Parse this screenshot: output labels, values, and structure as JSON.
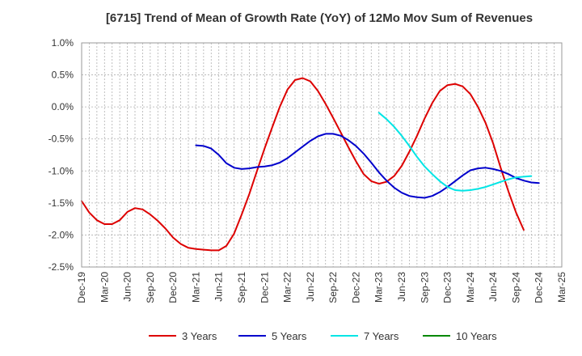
{
  "chart_data": {
    "type": "line",
    "title": "[6715]  Trend of Mean of Growth Rate (YoY) of 12Mo Mov Sum of Revenues",
    "xlabel": "",
    "ylabel": "",
    "ylim": [
      -2.5,
      1.0
    ],
    "grid": true,
    "legend_position": "bottom",
    "y_ticks": [
      1.0,
      0.5,
      0.0,
      -0.5,
      -1.0,
      -1.5,
      -2.0,
      -2.5
    ],
    "y_tick_labels": [
      "1.0%",
      "0.5%",
      "0.0%",
      "-0.5%",
      "-1.0%",
      "-1.5%",
      "-2.0%",
      "-2.5%"
    ],
    "x_tick_labels": [
      "Dec-19",
      "Mar-20",
      "Jun-20",
      "Sep-20",
      "Dec-20",
      "Mar-21",
      "Jun-21",
      "Sep-21",
      "Dec-21",
      "Mar-22",
      "Jun-22",
      "Sep-22",
      "Dec-22",
      "Mar-23",
      "Jun-23",
      "Sep-23",
      "Dec-23",
      "Mar-24",
      "Jun-24",
      "Sep-24",
      "Dec-24",
      "Mar-25"
    ],
    "x_range_months": [
      0,
      63
    ],
    "series": [
      {
        "name": "3 Years",
        "color": "#dd0000",
        "start_month": 0,
        "values": [
          -1.47,
          -1.65,
          -1.77,
          -1.83,
          -1.83,
          -1.77,
          -1.64,
          -1.58,
          -1.6,
          -1.68,
          -1.78,
          -1.9,
          -2.04,
          -2.14,
          -2.2,
          -2.22,
          -2.23,
          -2.24,
          -2.24,
          -2.17,
          -1.98,
          -1.68,
          -1.36,
          -1.0,
          -0.65,
          -0.32,
          0.0,
          0.27,
          0.42,
          0.45,
          0.4,
          0.25,
          0.05,
          -0.17,
          -0.4,
          -0.63,
          -0.85,
          -1.05,
          -1.16,
          -1.2,
          -1.17,
          -1.08,
          -0.92,
          -0.7,
          -0.45,
          -0.18,
          0.06,
          0.25,
          0.34,
          0.36,
          0.32,
          0.2,
          0.0,
          -0.25,
          -0.57,
          -0.96,
          -1.32,
          -1.65,
          -1.92
        ]
      },
      {
        "name": "5 Years",
        "color": "#0000cc",
        "start_month": 15,
        "values": [
          -0.6,
          -0.61,
          -0.65,
          -0.75,
          -0.88,
          -0.95,
          -0.97,
          -0.96,
          -0.94,
          -0.93,
          -0.91,
          -0.87,
          -0.8,
          -0.71,
          -0.62,
          -0.53,
          -0.46,
          -0.42,
          -0.42,
          -0.45,
          -0.52,
          -0.61,
          -0.73,
          -0.87,
          -1.02,
          -1.15,
          -1.26,
          -1.34,
          -1.39,
          -1.41,
          -1.42,
          -1.39,
          -1.33,
          -1.25,
          -1.16,
          -1.07,
          -0.99,
          -0.96,
          -0.95,
          -0.97,
          -1.0,
          -1.05,
          -1.11,
          -1.15,
          -1.18,
          -1.19
        ]
      },
      {
        "name": "7 Years",
        "color": "#00e5e5",
        "start_month": 39,
        "values": [
          -0.09,
          -0.19,
          -0.31,
          -0.45,
          -0.61,
          -0.78,
          -0.93,
          -1.05,
          -1.16,
          -1.25,
          -1.3,
          -1.31,
          -1.3,
          -1.28,
          -1.25,
          -1.21,
          -1.17,
          -1.13,
          -1.1,
          -1.09,
          -1.08
        ]
      },
      {
        "name": "10 Years",
        "color": "#008800",
        "start_month": 0,
        "values": []
      }
    ]
  }
}
